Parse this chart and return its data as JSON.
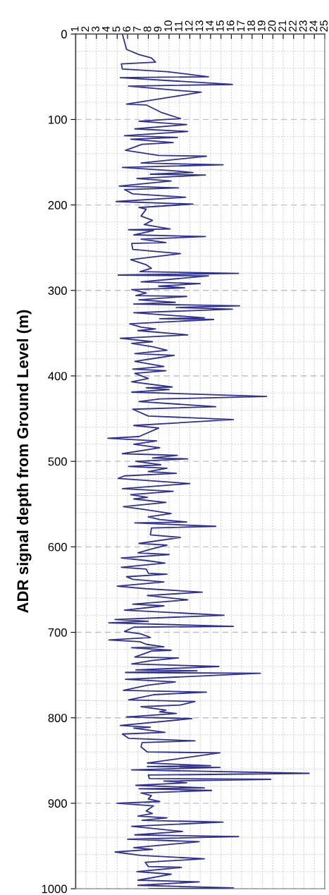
{
  "chart_data": {
    "type": "line",
    "ylabel": "ADR signal depth from Ground Level (m)",
    "xlim": [
      1,
      25
    ],
    "xticks": [
      1,
      2,
      3,
      4,
      5,
      6,
      7,
      8,
      9,
      10,
      11,
      12,
      13,
      14,
      15,
      16,
      17,
      18,
      19,
      20,
      21,
      22,
      23,
      24,
      25
    ],
    "ylim": [
      1000,
      0
    ],
    "yticks": [
      0,
      {
        "value": 20,
        "label": null
      },
      {
        "value": 40,
        "label": null
      },
      {
        "value": 60,
        "label": null
      },
      {
        "value": 80,
        "label": null
      },
      100,
      {
        "value": 120,
        "label": null
      },
      {
        "value": 140,
        "label": null
      },
      {
        "value": 160,
        "label": null
      },
      {
        "value": 180,
        "label": null
      },
      200,
      {
        "value": 220,
        "label": null
      },
      {
        "value": 240,
        "label": null
      },
      {
        "value": 260,
        "label": null
      },
      {
        "value": 280,
        "label": null
      },
      300,
      {
        "value": 320,
        "label": null
      },
      {
        "value": 340,
        "label": null
      },
      {
        "value": 360,
        "label": null
      },
      {
        "value": 380,
        "label": null
      },
      400,
      {
        "value": 420,
        "label": null
      },
      {
        "value": 440,
        "label": null
      },
      {
        "value": 460,
        "label": null
      },
      {
        "value": 480,
        "label": null
      },
      500,
      {
        "value": 520,
        "label": null
      },
      {
        "value": 540,
        "label": null
      },
      {
        "value": 560,
        "label": null
      },
      {
        "value": 580,
        "label": null
      },
      600,
      {
        "value": 620,
        "label": null
      },
      {
        "value": 640,
        "label": null
      },
      {
        "value": 660,
        "label": null
      },
      {
        "value": 680,
        "label": null
      },
      700,
      {
        "value": 720,
        "label": null
      },
      {
        "value": 740,
        "label": null
      },
      {
        "value": 760,
        "label": null
      },
      {
        "value": 780,
        "label": null
      },
      800,
      {
        "value": 820,
        "label": null
      },
      {
        "value": 840,
        "label": null
      },
      {
        "value": 860,
        "label": null
      },
      {
        "value": 880,
        "label": null
      },
      900,
      {
        "value": 920,
        "label": null
      },
      {
        "value": 940,
        "label": null
      },
      {
        "value": 960,
        "label": null
      },
      {
        "value": 980,
        "label": null
      },
      1000
    ],
    "grid": true,
    "marker": "none",
    "line_style": "solid",
    "series": [
      {
        "color": "#2e3192",
        "x": [
          5.5,
          5.9,
          7.1,
          8.3,
          8.7,
          5.4,
          5.5,
          9.8,
          13.8,
          5.3,
          16.1,
          6.1,
          10.8,
          13.1,
          10.6,
          5.9,
          7.8,
          9.3,
          11.1,
          7.1,
          11.7,
          6.7,
          11.8,
          5.7,
          10.8,
          6.3,
          10.4,
          7.4,
          5.8,
          9.0,
          13.6,
          7.3,
          15.2,
          5.5,
          10.4,
          12.3,
          8.2,
          13.5,
          6.9,
          10.2,
          5.2,
          10.9,
          5.7,
          6.5,
          11.6,
          4.9,
          12.3,
          7.1,
          7.8,
          7.3,
          8.4,
          7.6,
          10.1,
          6.1,
          8.5,
          6.6,
          13.5,
          7.3,
          9.7,
          6.4,
          6.5,
          11.1,
          6.3,
          7.8,
          8.3,
          7.2,
          16.7,
          5.1,
          13.8,
          7.3,
          13.0,
          9.0,
          11.5,
          6.4,
          7.8,
          6.8,
          11.7,
          7.1,
          10.6,
          6.6,
          16.8,
          10.7,
          16.1,
          6.6,
          13.4,
          9.1,
          14.3,
          6.2,
          7.3,
          8.7,
          7.0,
          11.8,
          5.3,
          8.4,
          6.4,
          8.5,
          9.8,
          6.7,
          10.5,
          8.3,
          6.7,
          9.5,
          6.5,
          9.7,
          6.7,
          8.0,
          6.4,
          10.3,
          7.8,
          10.0,
          6.4,
          19.4,
          9.1,
          7.1,
          14.5,
          6.5,
          8.0,
          16.2,
          6.6,
          9.0,
          7.1,
          4.1,
          8.8,
          6.6,
          9.1,
          5.5,
          10.8,
          8.4,
          11.8,
          6.8,
          9.2,
          6.1,
          9.8,
          8.0,
          10.7,
          5.7,
          5.1,
          12.0,
          5.5,
          10.4,
          6.3,
          7.9,
          6.6,
          9.7,
          5.6,
          7.5,
          10.2,
          8.0,
          9.1,
          11.7,
          6.7,
          14.5,
          8.3,
          8.2,
          11.1,
          7.1,
          9.8,
          8.2,
          7.0,
          10.0,
          5.4,
          7.8,
          9.6,
          5.4,
          7.8,
          8.0,
          9.8,
          5.9,
          6.5,
          9.5,
          5.0,
          7.8,
          13.2,
          7.9,
          11.8,
          6.5,
          9.5,
          5.7,
          15.3,
          4.8,
          8.0,
          4.2,
          16.2,
          6.6,
          5.7,
          7.3,
          8.2,
          4.2,
          7.2,
          7.8,
          9.5,
          6.4,
          10.2,
          8.3,
          6.7,
          10.9,
          8.3,
          6.4,
          14.8,
          6.8,
          12.7,
          5.8,
          18.8,
          5.8,
          10.6,
          7.9,
          5.6,
          13.6,
          8.5,
          6.1,
          12.5,
          11.1,
          7.3,
          9.7,
          9.1,
          10.7,
          5.9,
          12.2,
          5.3,
          8.2,
          6.6,
          9.6,
          5.5,
          6.1,
          12.5,
          7.4,
          7.3,
          7.9,
          14.9,
          7.9,
          14.0,
          7.9,
          14.9,
          6.4,
          23.5,
          8.0,
          8.1,
          19.8,
          9.5,
          11.7,
          6.8,
          13.4,
          7.1,
          14.1,
          7.3,
          8.3,
          8.0,
          9.1,
          5.0,
          8.5,
          7.8,
          8.4,
          7.0,
          9.8,
          7.4,
          15.2,
          6.4,
          11.3,
          6.7,
          16.7,
          6.0,
          12.9,
          6.6,
          8.4,
          4.8,
          7.3,
          13.4,
          7.7,
          8.0,
          11.2,
          6.9,
          10.2,
          7.0,
          12.9,
          7.0,
          16.2,
          8.1
        ],
        "values": [
          0,
          18,
          24,
          28,
          33,
          35,
          41,
          44,
          50,
          51,
          59,
          61,
          66,
          68,
          73,
          82,
          83,
          92,
          99,
          102,
          106,
          111,
          114,
          119,
          121,
          123,
          127,
          129,
          136,
          142,
          143,
          151,
          153,
          156,
          160,
          162,
          164,
          165,
          169,
          172,
          178,
          180,
          182,
          187,
          191,
          196,
          199,
          203,
          205,
          213,
          218,
          223,
          228,
          229,
          230,
          235,
          237,
          240,
          244,
          245,
          252,
          257,
          264,
          270,
          274,
          278,
          280,
          282,
          283,
          290,
          292,
          295,
          297,
          299,
          303,
          306,
          307,
          311,
          314,
          316,
          318,
          320,
          322,
          326,
          332,
          333,
          334,
          339,
          343,
          345,
          347,
          352,
          356,
          360,
          362,
          366,
          370,
          374,
          376,
          380,
          383,
          389,
          392,
          394,
          397,
          403,
          407,
          413,
          414,
          416,
          419,
          424,
          427,
          430,
          436,
          439,
          447,
          451,
          458,
          461,
          471,
          473,
          476,
          480,
          484,
          491,
          493,
          496,
          497,
          500,
          504,
          506,
          508,
          512,
          514,
          517,
          520,
          526,
          532,
          535,
          539,
          542,
          544,
          548,
          553,
          556,
          561,
          565,
          568,
          571,
          572,
          576,
          578,
          586,
          589,
          596,
          598,
          603,
          607,
          609,
          613,
          616,
          619,
          624,
          626,
          631,
          632,
          635,
          638,
          641,
          646,
          649,
          653,
          657,
          662,
          667,
          669,
          674,
          680,
          685,
          687,
          689,
          693,
          694,
          699,
          702,
          706,
          709,
          711,
          714,
          717,
          718,
          721,
          722,
          729,
          730,
          733,
          737,
          740,
          744,
          745,
          747,
          748,
          755,
          758,
          762,
          768,
          770,
          773,
          779,
          781,
          785,
          787,
          791,
          793,
          795,
          799,
          801,
          809,
          811,
          812,
          817,
          819,
          824,
          827,
          829,
          834,
          840,
          841,
          853,
          856,
          857,
          858,
          861,
          865,
          867,
          871,
          872,
          874,
          876,
          879,
          882,
          883,
          885,
          888,
          891,
          895,
          898,
          900,
          903,
          909,
          912,
          915,
          917,
          920,
          922,
          927,
          933,
          937,
          939,
          942,
          945,
          952,
          954,
          957,
          961,
          965,
          969,
          974,
          975,
          980,
          983,
          990,
          992,
          996,
          999,
          1000
        ]
      }
    ]
  }
}
